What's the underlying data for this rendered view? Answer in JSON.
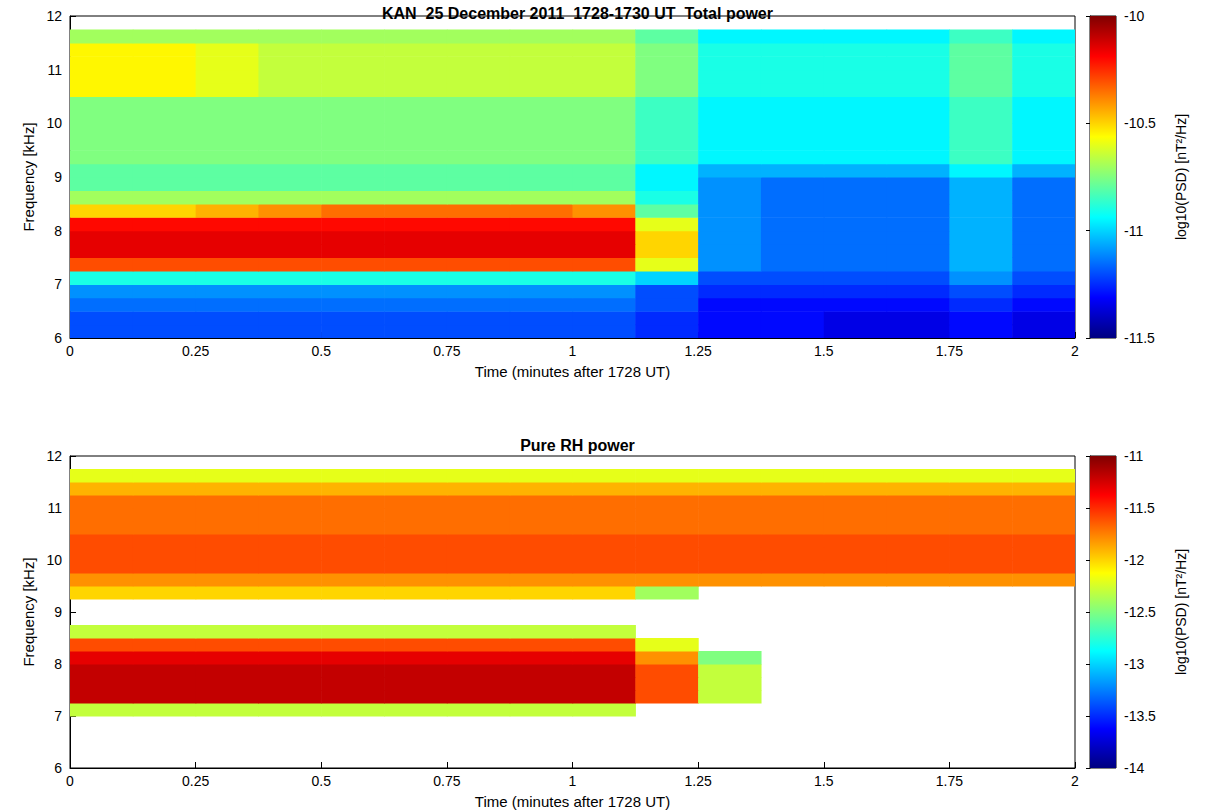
{
  "chart_data": [
    {
      "type": "heatmap",
      "title": "KAN  25 December 2011  1728-1730 UT  Total power",
      "x_label": "Time (minutes after 1728 UT)",
      "y_label": "Frequency [kHz]",
      "xlim": [
        0,
        2
      ],
      "xticks": [
        0,
        0.25,
        0.5,
        0.75,
        1,
        1.25,
        1.5,
        1.75,
        2
      ],
      "ylim": [
        6,
        12
      ],
      "yticks": [
        6,
        7,
        8,
        9,
        10,
        11,
        12
      ],
      "color": "jet",
      "colorbar_label": "log10(PSD) [nT²/Hz]",
      "colorbar_range": [
        -11.5,
        -10
      ],
      "colorbar_ticks": [
        -11.5,
        -11,
        -10.5,
        -10
      ],
      "x_edges": [
        0,
        0.125,
        0.25,
        0.375,
        0.5,
        0.625,
        0.75,
        0.875,
        1,
        1.125,
        1.25,
        1.375,
        1.5,
        1.625,
        1.75,
        1.875,
        2
      ],
      "y_edges": [
        6,
        6.25,
        6.5,
        6.75,
        7,
        7.25,
        7.5,
        7.75,
        8,
        8.25,
        8.5,
        8.75,
        9,
        9.25,
        9.5,
        9.75,
        10,
        10.25,
        10.5,
        10.75,
        11,
        11.25,
        11.5,
        11.75,
        12
      ],
      "cells": [
        [
          -11.2,
          -11.2,
          -11.2,
          -11.2,
          -11.2,
          -11.2,
          -11.2,
          -11.2,
          -11.2,
          -11.25,
          -11.3,
          -11.3,
          -11.35,
          -11.35,
          -11.3,
          -11.35
        ],
        [
          -11.2,
          -11.2,
          -11.2,
          -11.2,
          -11.2,
          -11.2,
          -11.2,
          -11.2,
          -11.2,
          -11.25,
          -11.3,
          -11.3,
          -11.35,
          -11.35,
          -11.3,
          -11.35
        ],
        [
          -11.15,
          -11.15,
          -11.15,
          -11.15,
          -11.15,
          -11.15,
          -11.15,
          -11.15,
          -11.15,
          -11.2,
          -11.3,
          -11.3,
          -11.3,
          -11.3,
          -11.25,
          -11.3
        ],
        [
          -11.1,
          -11.1,
          -11.1,
          -11.1,
          -11.1,
          -11.1,
          -11.1,
          -11.1,
          -11.1,
          -11.2,
          -11.25,
          -11.25,
          -11.25,
          -11.25,
          -11.2,
          -11.25
        ],
        [
          -10.9,
          -10.9,
          -10.9,
          -10.9,
          -10.9,
          -10.9,
          -10.9,
          -10.9,
          -10.9,
          -11.0,
          -11.2,
          -11.2,
          -11.2,
          -11.2,
          -11.1,
          -11.2
        ],
        [
          -10.3,
          -10.3,
          -10.3,
          -10.3,
          -10.3,
          -10.3,
          -10.3,
          -10.3,
          -10.3,
          -10.6,
          -11.1,
          -11.15,
          -11.15,
          -11.15,
          -11.05,
          -11.15
        ],
        [
          -10.15,
          -10.15,
          -10.15,
          -10.15,
          -10.15,
          -10.15,
          -10.15,
          -10.15,
          -10.15,
          -10.5,
          -11.1,
          -11.15,
          -11.15,
          -11.15,
          -11.05,
          -11.15
        ],
        [
          -10.15,
          -10.15,
          -10.15,
          -10.15,
          -10.15,
          -10.15,
          -10.15,
          -10.15,
          -10.15,
          -10.5,
          -11.1,
          -11.15,
          -11.15,
          -11.15,
          -11.05,
          -11.15
        ],
        [
          -10.2,
          -10.2,
          -10.2,
          -10.2,
          -10.2,
          -10.2,
          -10.2,
          -10.2,
          -10.2,
          -10.6,
          -11.1,
          -11.15,
          -11.15,
          -11.15,
          -11.05,
          -11.15
        ],
        [
          -10.5,
          -10.5,
          -10.45,
          -10.4,
          -10.35,
          -10.35,
          -10.35,
          -10.35,
          -10.4,
          -10.8,
          -11.1,
          -11.15,
          -11.15,
          -11.15,
          -11.05,
          -11.15
        ],
        [
          -10.7,
          -10.7,
          -10.7,
          -10.7,
          -10.7,
          -10.7,
          -10.7,
          -10.7,
          -10.7,
          -10.9,
          -11.1,
          -11.15,
          -11.15,
          -11.15,
          -11.05,
          -11.15
        ],
        [
          -10.8,
          -10.8,
          -10.8,
          -10.8,
          -10.8,
          -10.8,
          -10.8,
          -10.8,
          -10.8,
          -10.95,
          -11.1,
          -11.15,
          -11.15,
          -11.15,
          -11.05,
          -11.15
        ],
        [
          -10.8,
          -10.8,
          -10.8,
          -10.8,
          -10.8,
          -10.8,
          -10.8,
          -10.8,
          -10.8,
          -10.95,
          -11.05,
          -11.05,
          -11.05,
          -11.05,
          -10.95,
          -11.05
        ],
        [
          -10.75,
          -10.75,
          -10.75,
          -10.75,
          -10.75,
          -10.75,
          -10.75,
          -10.75,
          -10.75,
          -10.85,
          -10.95,
          -10.95,
          -10.95,
          -10.95,
          -10.85,
          -10.95
        ],
        [
          -10.75,
          -10.75,
          -10.75,
          -10.75,
          -10.75,
          -10.75,
          -10.75,
          -10.75,
          -10.75,
          -10.85,
          -10.95,
          -10.95,
          -10.95,
          -10.95,
          -10.85,
          -10.95
        ],
        [
          -10.75,
          -10.75,
          -10.75,
          -10.75,
          -10.75,
          -10.75,
          -10.75,
          -10.75,
          -10.75,
          -10.85,
          -10.95,
          -10.95,
          -10.95,
          -10.95,
          -10.85,
          -10.95
        ],
        [
          -10.75,
          -10.75,
          -10.75,
          -10.75,
          -10.75,
          -10.75,
          -10.75,
          -10.75,
          -10.75,
          -10.85,
          -10.95,
          -10.95,
          -10.95,
          -10.95,
          -10.85,
          -10.95
        ],
        [
          -10.75,
          -10.75,
          -10.75,
          -10.75,
          -10.75,
          -10.75,
          -10.75,
          -10.75,
          -10.75,
          -10.85,
          -10.95,
          -10.95,
          -10.95,
          -10.95,
          -10.85,
          -10.95
        ],
        [
          -10.55,
          -10.55,
          -10.6,
          -10.65,
          -10.65,
          -10.65,
          -10.65,
          -10.65,
          -10.65,
          -10.75,
          -10.9,
          -10.9,
          -10.9,
          -10.9,
          -10.8,
          -10.9
        ],
        [
          -10.55,
          -10.55,
          -10.6,
          -10.65,
          -10.65,
          -10.65,
          -10.65,
          -10.65,
          -10.65,
          -10.75,
          -10.9,
          -10.9,
          -10.9,
          -10.9,
          -10.8,
          -10.9
        ],
        [
          -10.55,
          -10.55,
          -10.6,
          -10.65,
          -10.65,
          -10.65,
          -10.65,
          -10.65,
          -10.65,
          -10.75,
          -10.9,
          -10.9,
          -10.9,
          -10.9,
          -10.8,
          -10.9
        ],
        [
          -10.55,
          -10.55,
          -10.6,
          -10.65,
          -10.65,
          -10.65,
          -10.65,
          -10.65,
          -10.65,
          -10.75,
          -10.9,
          -10.9,
          -10.9,
          -10.9,
          -10.8,
          -10.9
        ],
        [
          -10.7,
          -10.7,
          -10.7,
          -10.7,
          -10.7,
          -10.7,
          -10.7,
          -10.7,
          -10.7,
          -10.8,
          -10.95,
          -10.95,
          -10.95,
          -10.95,
          -10.85,
          -10.95
        ],
        [
          null,
          null,
          null,
          null,
          null,
          null,
          null,
          null,
          null,
          null,
          null,
          null,
          null,
          null,
          null,
          null
        ]
      ]
    },
    {
      "type": "heatmap",
      "title": "Pure RH power",
      "x_label": "Time (minutes after 1728 UT)",
      "y_label": "Frequency [kHz]",
      "xlim": [
        0,
        2
      ],
      "xticks": [
        0,
        0.25,
        0.5,
        0.75,
        1,
        1.25,
        1.5,
        1.75,
        2
      ],
      "ylim": [
        6,
        12
      ],
      "yticks": [
        6,
        7,
        8,
        9,
        10,
        11,
        12
      ],
      "color": "jet",
      "colorbar_label": "log10(PSD) [nT²/Hz]",
      "colorbar_range": [
        -14,
        -11
      ],
      "colorbar_ticks": [
        -14,
        -13.5,
        -13,
        -12.5,
        -12,
        -11.5,
        -11
      ],
      "x_edges": [
        0,
        0.125,
        0.25,
        0.375,
        0.5,
        0.625,
        0.75,
        0.875,
        1,
        1.125,
        1.25,
        1.375,
        1.5,
        1.625,
        1.75,
        1.875,
        2
      ],
      "y_edges": [
        6,
        6.25,
        6.5,
        6.75,
        7,
        7.25,
        7.5,
        7.75,
        8,
        8.25,
        8.5,
        8.75,
        9,
        9.25,
        9.5,
        9.75,
        10,
        10.25,
        10.5,
        10.75,
        11,
        11.25,
        11.5,
        11.75,
        12
      ],
      "cells": [
        [
          null,
          null,
          null,
          null,
          null,
          null,
          null,
          null,
          null,
          null,
          null,
          null,
          null,
          null,
          null,
          null
        ],
        [
          null,
          null,
          null,
          null,
          null,
          null,
          null,
          null,
          null,
          null,
          null,
          null,
          null,
          null,
          null,
          null
        ],
        [
          null,
          null,
          null,
          null,
          null,
          null,
          null,
          null,
          null,
          null,
          null,
          null,
          null,
          null,
          null,
          null
        ],
        [
          null,
          null,
          null,
          null,
          null,
          null,
          null,
          null,
          null,
          null,
          null,
          null,
          null,
          null,
          null,
          null
        ],
        [
          -12.3,
          -12.3,
          -12.3,
          -12.3,
          -12.3,
          -12.3,
          -12.3,
          -12.3,
          -12.3,
          null,
          null,
          null,
          null,
          null,
          null,
          null
        ],
        [
          -11.2,
          -11.2,
          -11.2,
          -11.2,
          -11.2,
          -11.2,
          -11.2,
          -11.2,
          -11.2,
          -11.6,
          -12.3,
          null,
          null,
          null,
          null,
          null
        ],
        [
          -11.2,
          -11.2,
          -11.2,
          -11.2,
          -11.2,
          -11.2,
          -11.2,
          -11.2,
          -11.2,
          -11.6,
          -12.3,
          null,
          null,
          null,
          null,
          null
        ],
        [
          -11.2,
          -11.2,
          -11.2,
          -11.2,
          -11.2,
          -11.2,
          -11.2,
          -11.2,
          -11.2,
          -11.6,
          -12.3,
          null,
          null,
          null,
          null,
          null
        ],
        [
          -11.3,
          -11.3,
          -11.3,
          -11.3,
          -11.3,
          -11.3,
          -11.3,
          -11.3,
          -11.3,
          -11.8,
          -12.5,
          null,
          null,
          null,
          null,
          null
        ],
        [
          -11.6,
          -11.6,
          -11.6,
          -11.6,
          -11.6,
          -11.6,
          -11.6,
          -11.6,
          -11.6,
          -12.2,
          null,
          null,
          null,
          null,
          null,
          null
        ],
        [
          -12.3,
          -12.3,
          -12.3,
          -12.3,
          -12.3,
          -12.3,
          -12.3,
          -12.3,
          -12.3,
          null,
          null,
          null,
          null,
          null,
          null,
          null
        ],
        [
          null,
          null,
          null,
          null,
          null,
          null,
          null,
          null,
          null,
          null,
          null,
          null,
          null,
          null,
          null,
          null
        ],
        [
          null,
          null,
          null,
          null,
          null,
          null,
          null,
          null,
          null,
          null,
          null,
          null,
          null,
          null,
          null,
          null
        ],
        [
          -12.0,
          -12.0,
          -12.0,
          -12.0,
          -12.0,
          -12.0,
          -12.0,
          -12.0,
          -12.0,
          -12.4,
          null,
          null,
          null,
          null,
          null,
          null
        ],
        [
          -11.8,
          -11.8,
          -11.8,
          -11.8,
          -11.8,
          -11.8,
          -11.8,
          -11.8,
          -11.8,
          -11.8,
          -11.8,
          -11.8,
          -11.8,
          -11.8,
          -11.8,
          -11.8
        ],
        [
          -11.6,
          -11.6,
          -11.6,
          -11.6,
          -11.6,
          -11.6,
          -11.6,
          -11.6,
          -11.6,
          -11.6,
          -11.6,
          -11.6,
          -11.6,
          -11.6,
          -11.6,
          -11.6
        ],
        [
          -11.6,
          -11.6,
          -11.6,
          -11.6,
          -11.6,
          -11.6,
          -11.6,
          -11.6,
          -11.6,
          -11.6,
          -11.6,
          -11.6,
          -11.6,
          -11.6,
          -11.6,
          -11.6
        ],
        [
          -11.6,
          -11.6,
          -11.6,
          -11.6,
          -11.6,
          -11.6,
          -11.6,
          -11.6,
          -11.6,
          -11.6,
          -11.6,
          -11.6,
          -11.6,
          -11.6,
          -11.6,
          -11.6
        ],
        [
          -11.7,
          -11.7,
          -11.7,
          -11.7,
          -11.7,
          -11.7,
          -11.7,
          -11.7,
          -11.7,
          -11.7,
          -11.7,
          -11.7,
          -11.7,
          -11.7,
          -11.7,
          -11.7
        ],
        [
          -11.7,
          -11.7,
          -11.7,
          -11.7,
          -11.7,
          -11.7,
          -11.7,
          -11.7,
          -11.7,
          -11.7,
          -11.7,
          -11.7,
          -11.7,
          -11.7,
          -11.7,
          -11.7
        ],
        [
          -11.7,
          -11.7,
          -11.7,
          -11.7,
          -11.7,
          -11.7,
          -11.7,
          -11.7,
          -11.7,
          -11.7,
          -11.7,
          -11.7,
          -11.7,
          -11.7,
          -11.7,
          -11.7
        ],
        [
          -11.9,
          -11.9,
          -11.9,
          -11.9,
          -11.9,
          -11.9,
          -11.9,
          -11.9,
          -11.9,
          -11.9,
          -11.9,
          -11.9,
          -11.9,
          -11.9,
          -11.9,
          -11.9
        ],
        [
          -12.2,
          -12.2,
          -12.2,
          -12.2,
          -12.2,
          -12.2,
          -12.2,
          -12.2,
          -12.2,
          -12.2,
          -12.2,
          -12.2,
          -12.2,
          -12.2,
          -12.2,
          -12.2
        ],
        [
          null,
          null,
          null,
          null,
          null,
          null,
          null,
          null,
          null,
          null,
          null,
          null,
          null,
          null,
          null,
          null
        ]
      ]
    }
  ]
}
